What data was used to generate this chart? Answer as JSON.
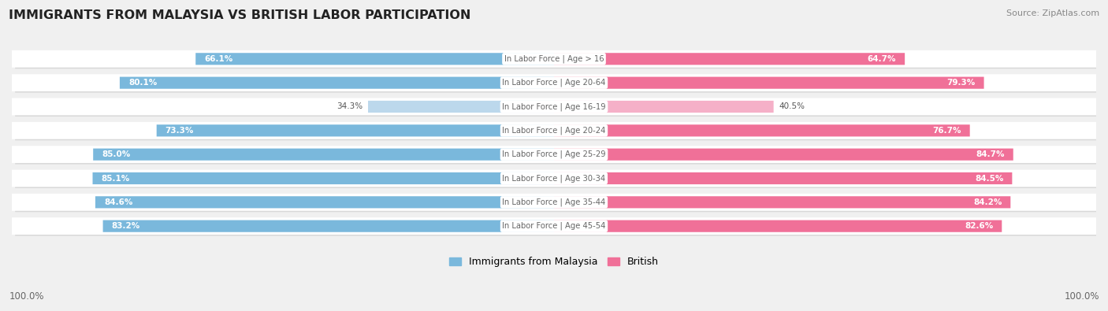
{
  "title": "IMMIGRANTS FROM MALAYSIA VS BRITISH LABOR PARTICIPATION",
  "source": "Source: ZipAtlas.com",
  "categories": [
    "In Labor Force | Age > 16",
    "In Labor Force | Age 20-64",
    "In Labor Force | Age 16-19",
    "In Labor Force | Age 20-24",
    "In Labor Force | Age 25-29",
    "In Labor Force | Age 30-34",
    "In Labor Force | Age 35-44",
    "In Labor Force | Age 45-54"
  ],
  "malaysia_values": [
    66.1,
    80.1,
    34.3,
    73.3,
    85.0,
    85.1,
    84.6,
    83.2
  ],
  "british_values": [
    64.7,
    79.3,
    40.5,
    76.7,
    84.7,
    84.5,
    84.2,
    82.6
  ],
  "malaysia_color_strong": "#7ab8dc",
  "malaysia_color_light": "#bcd8ec",
  "british_color_strong": "#f07098",
  "british_color_light": "#f5b0c8",
  "bg_color": "#f0f0f0",
  "row_bg": "#ffffff",
  "row_shadow": "#d8d8d8",
  "threshold": 60,
  "legend_malaysia": "Immigrants from Malaysia",
  "legend_british": "British",
  "x_left_label": "100.0%",
  "x_right_label": "100.0%",
  "center_label_color": "#666666",
  "value_label_color_inside": "#ffffff",
  "value_label_color_outside": "#555555"
}
